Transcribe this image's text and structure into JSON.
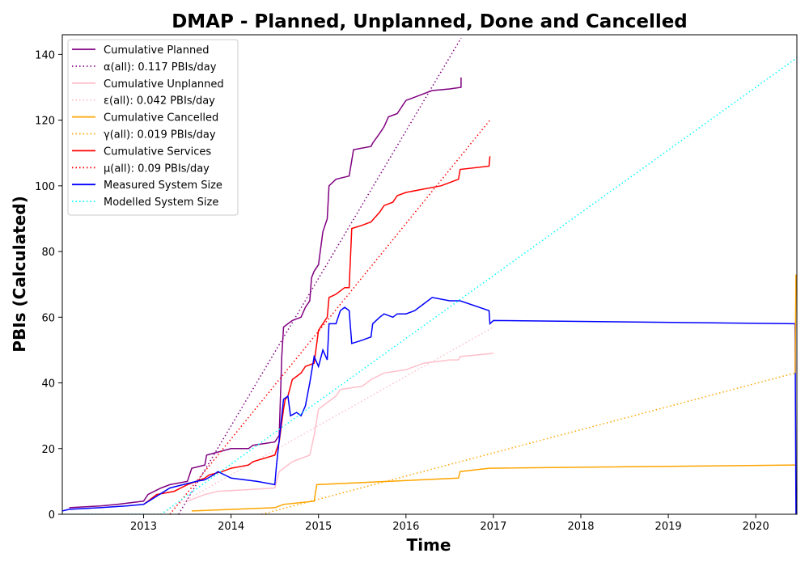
{
  "chart_data": {
    "type": "line",
    "title": "DMAP - Planned, Unplanned, Done  and Cancelled",
    "xlabel": "Time",
    "ylabel": "PBIs (Calculated)",
    "xlim": [
      2012.07,
      2020.47
    ],
    "ylim": [
      0,
      146
    ],
    "x_ticks": [
      2013,
      2014,
      2015,
      2016,
      2017,
      2018,
      2019,
      2020
    ],
    "y_ticks": [
      0,
      20,
      40,
      60,
      80,
      100,
      120,
      140
    ],
    "grid": false,
    "legend_position": "top-left",
    "series": [
      {
        "name": "Cumulative Planned",
        "color": "#800080",
        "style": "solid",
        "points": [
          [
            2012.15,
            2
          ],
          [
            2012.5,
            2.5
          ],
          [
            2012.7,
            3
          ],
          [
            2013.0,
            4
          ],
          [
            2013.05,
            6
          ],
          [
            2013.2,
            8
          ],
          [
            2013.3,
            9
          ],
          [
            2013.5,
            10
          ],
          [
            2013.55,
            14
          ],
          [
            2013.7,
            15
          ],
          [
            2013.72,
            18
          ],
          [
            2014.0,
            20
          ],
          [
            2014.2,
            20
          ],
          [
            2014.25,
            21
          ],
          [
            2014.5,
            22
          ],
          [
            2014.55,
            24
          ],
          [
            2014.58,
            48
          ],
          [
            2014.6,
            57
          ],
          [
            2014.65,
            58
          ],
          [
            2014.7,
            59
          ],
          [
            2014.8,
            60
          ],
          [
            2014.85,
            63
          ],
          [
            2014.9,
            65
          ],
          [
            2014.92,
            72
          ],
          [
            2014.95,
            74
          ],
          [
            2015.0,
            76
          ],
          [
            2015.05,
            86
          ],
          [
            2015.1,
            90
          ],
          [
            2015.12,
            100
          ],
          [
            2015.2,
            102
          ],
          [
            2015.35,
            103
          ],
          [
            2015.4,
            111
          ],
          [
            2015.6,
            112
          ],
          [
            2015.62,
            113
          ],
          [
            2015.7,
            116
          ],
          [
            2015.75,
            118
          ],
          [
            2015.8,
            121
          ],
          [
            2015.9,
            122
          ],
          [
            2016.0,
            126
          ],
          [
            2016.1,
            127
          ],
          [
            2016.2,
            128
          ],
          [
            2016.3,
            129
          ],
          [
            2016.5,
            129.5
          ],
          [
            2016.63,
            130
          ],
          [
            2016.63,
            133
          ]
        ]
      },
      {
        "name": "α(all): 0.117 PBIs/day",
        "color": "#800080",
        "style": "dotted",
        "points": [
          [
            2013.4,
            0
          ],
          [
            2016.63,
            145
          ]
        ]
      },
      {
        "name": "Cumulative Unplanned",
        "color": "#ffc0cb",
        "style": "solid",
        "points": [
          [
            2013.5,
            4
          ],
          [
            2013.7,
            6
          ],
          [
            2013.85,
            7
          ],
          [
            2014.2,
            7.5
          ],
          [
            2014.5,
            8
          ],
          [
            2014.55,
            13
          ],
          [
            2014.7,
            16
          ],
          [
            2014.9,
            18
          ],
          [
            2014.95,
            24
          ],
          [
            2015.0,
            32
          ],
          [
            2015.1,
            34
          ],
          [
            2015.2,
            36
          ],
          [
            2015.25,
            38
          ],
          [
            2015.5,
            39
          ],
          [
            2015.6,
            41
          ],
          [
            2015.75,
            43
          ],
          [
            2016.0,
            44
          ],
          [
            2016.2,
            46
          ],
          [
            2016.5,
            47
          ],
          [
            2016.6,
            47
          ],
          [
            2016.62,
            48
          ],
          [
            2017.0,
            49
          ]
        ]
      },
      {
        "name": "ε(all): 0.042 PBIs/day",
        "color": "#ffc0cb",
        "style": "dotted",
        "points": [
          [
            2013.2,
            0
          ],
          [
            2017.0,
            57
          ]
        ]
      },
      {
        "name": "Cumulative Cancelled",
        "color": "#ffa500",
        "style": "solid",
        "points": [
          [
            2013.55,
            1
          ],
          [
            2014.5,
            2
          ],
          [
            2014.6,
            3
          ],
          [
            2014.95,
            4
          ],
          [
            2014.98,
            9
          ],
          [
            2016.6,
            11
          ],
          [
            2016.62,
            13
          ],
          [
            2016.95,
            14
          ],
          [
            2020.45,
            15
          ]
        ]
      },
      {
        "name": "γ(all): 0.019 PBIs/day",
        "color": "#ffa500",
        "style": "dotted",
        "points": [
          [
            2014.35,
            0
          ],
          [
            2020.45,
            43
          ]
        ]
      },
      {
        "name": "Cumulative Services",
        "color": "#ff0000",
        "style": "solid",
        "points": [
          [
            2013.0,
            3
          ],
          [
            2013.1,
            5
          ],
          [
            2013.15,
            6
          ],
          [
            2013.35,
            7
          ],
          [
            2013.5,
            9
          ],
          [
            2013.7,
            11
          ],
          [
            2013.75,
            12
          ],
          [
            2013.9,
            13
          ],
          [
            2014.0,
            14
          ],
          [
            2014.2,
            15
          ],
          [
            2014.25,
            16
          ],
          [
            2014.5,
            18
          ],
          [
            2014.55,
            22
          ],
          [
            2014.6,
            32
          ],
          [
            2014.62,
            35
          ],
          [
            2014.65,
            36
          ],
          [
            2014.7,
            41
          ],
          [
            2014.8,
            43
          ],
          [
            2014.85,
            45
          ],
          [
            2014.95,
            46
          ],
          [
            2015.0,
            56
          ],
          [
            2015.1,
            60
          ],
          [
            2015.12,
            66
          ],
          [
            2015.2,
            67
          ],
          [
            2015.3,
            69
          ],
          [
            2015.35,
            69
          ],
          [
            2015.38,
            87
          ],
          [
            2015.5,
            88
          ],
          [
            2015.6,
            89
          ],
          [
            2015.7,
            92
          ],
          [
            2015.75,
            94
          ],
          [
            2015.85,
            95
          ],
          [
            2015.9,
            97
          ],
          [
            2016.0,
            98
          ],
          [
            2016.2,
            99
          ],
          [
            2016.4,
            100
          ],
          [
            2016.6,
            102
          ],
          [
            2016.62,
            105
          ],
          [
            2016.95,
            106
          ],
          [
            2016.96,
            109
          ]
        ]
      },
      {
        "name": "μ(all): 0.09 PBIs/day",
        "color": "#ff0000",
        "style": "dotted",
        "points": [
          [
            2013.3,
            0
          ],
          [
            2016.96,
            120
          ]
        ]
      },
      {
        "name": "Measured System Size",
        "color": "#0000ff",
        "style": "solid",
        "points": [
          [
            2012.07,
            1
          ],
          [
            2012.15,
            1.5
          ],
          [
            2012.5,
            2
          ],
          [
            2012.8,
            2.5
          ],
          [
            2013.0,
            3
          ],
          [
            2013.3,
            8
          ],
          [
            2013.6,
            10
          ],
          [
            2013.7,
            10.5
          ],
          [
            2013.8,
            12
          ],
          [
            2013.85,
            13
          ],
          [
            2014.0,
            11
          ],
          [
            2014.3,
            10
          ],
          [
            2014.5,
            9
          ],
          [
            2014.52,
            15
          ],
          [
            2014.6,
            35
          ],
          [
            2014.65,
            36
          ],
          [
            2014.68,
            30
          ],
          [
            2014.75,
            31
          ],
          [
            2014.8,
            30
          ],
          [
            2014.85,
            33
          ],
          [
            2014.9,
            40
          ],
          [
            2014.95,
            48
          ],
          [
            2015.0,
            45
          ],
          [
            2015.05,
            50
          ],
          [
            2015.1,
            47
          ],
          [
            2015.12,
            58
          ],
          [
            2015.2,
            58
          ],
          [
            2015.25,
            62
          ],
          [
            2015.3,
            63
          ],
          [
            2015.35,
            62
          ],
          [
            2015.38,
            52
          ],
          [
            2015.5,
            53
          ],
          [
            2015.6,
            54
          ],
          [
            2015.62,
            58
          ],
          [
            2015.7,
            60
          ],
          [
            2015.75,
            61
          ],
          [
            2015.85,
            60
          ],
          [
            2015.9,
            61
          ],
          [
            2016.0,
            61
          ],
          [
            2016.1,
            62
          ],
          [
            2016.2,
            64
          ],
          [
            2016.3,
            66
          ],
          [
            2016.5,
            65
          ],
          [
            2016.6,
            65
          ],
          [
            2016.62,
            65
          ],
          [
            2016.95,
            62
          ],
          [
            2016.96,
            58
          ],
          [
            2017.0,
            59
          ],
          [
            2020.45,
            58
          ],
          [
            2020.46,
            0
          ]
        ]
      },
      {
        "name": "Modelled System Size",
        "color": "#00ffff",
        "style": "dotted",
        "points": [
          [
            2012.07,
            0
          ],
          [
            2013.2,
            0
          ],
          [
            2020.47,
            139
          ]
        ]
      },
      {
        "name": "",
        "color": "#ffa500",
        "style": "solid",
        "points": [
          [
            2020.45,
            43
          ],
          [
            2020.46,
            73
          ]
        ]
      }
    ]
  }
}
